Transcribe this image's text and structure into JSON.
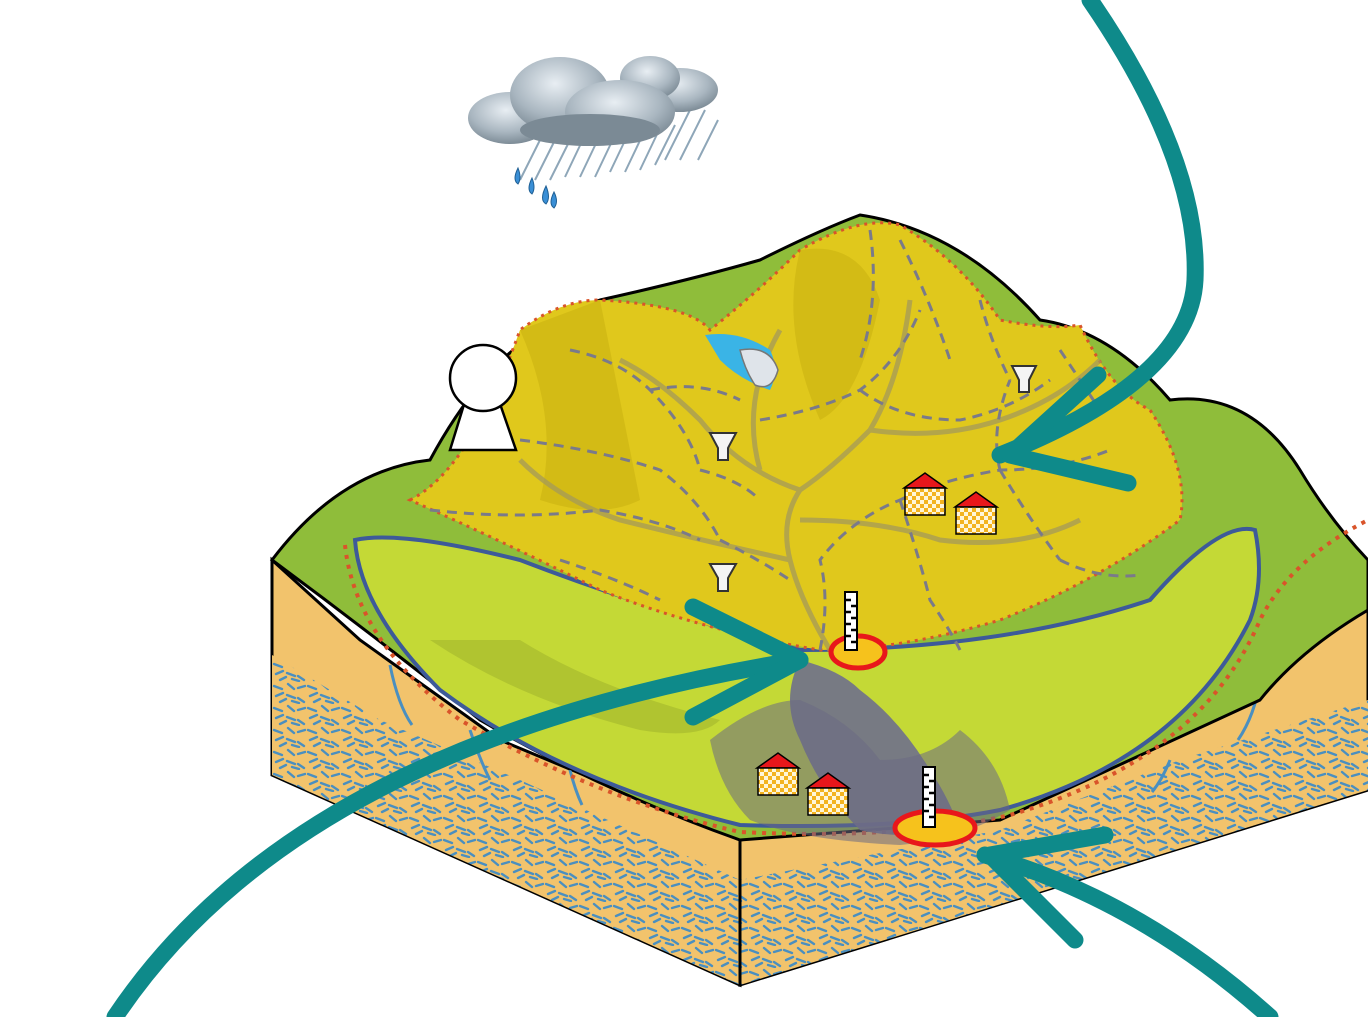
{
  "diagram": {
    "icons": [
      "rain-cloud-icon",
      "water-tower-icon",
      "rain-gauge-icon",
      "house-icon",
      "stream-gauge-icon",
      "outlet-marker-icon",
      "arrow-icon"
    ],
    "colors": {
      "upper_catchment": "#e0c81c",
      "valley_catchment": "#c4d936",
      "hill_green": "#8fbd3a",
      "soil": "#f2c36c",
      "groundwater_dash": "#4a8fc0",
      "boundary_line": "#3d5a99",
      "subcatchment_dash": "#7a7a8a",
      "arrow": "#0e8a8a",
      "outlet_fill": "#f6c21c",
      "outlet_ring": "#e8171b",
      "river": "#6f6f8c"
    }
  }
}
